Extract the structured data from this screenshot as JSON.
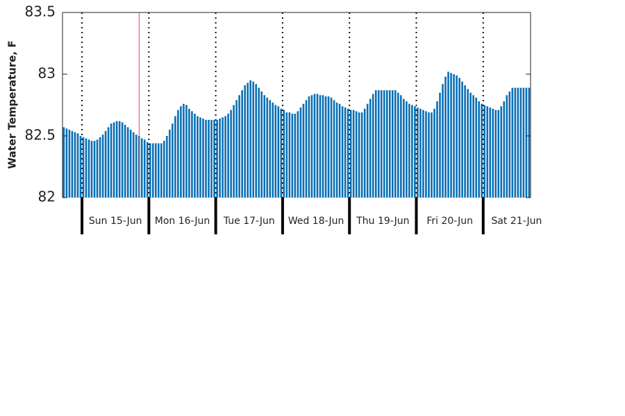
{
  "chart_data": {
    "type": "bar",
    "ylabel": "Water Temperature, F",
    "day_labels": [
      "Sun 15-Jun",
      "Mon 16-Jun",
      "Tue 17-Jun",
      "Wed 18-Jun",
      "Thu 19-Jun",
      "Fri 20-Jun",
      "Sat 21-Jun"
    ],
    "color": "#0a6fb5",
    "ylim": [
      82,
      83.5
    ],
    "yticks": [
      82,
      82.5,
      83,
      83.5
    ],
    "values": [
      82.57,
      82.56,
      82.55,
      82.54,
      82.53,
      82.52,
      82.5,
      82.49,
      82.48,
      82.47,
      82.46,
      82.46,
      82.47,
      82.49,
      82.51,
      82.54,
      82.57,
      82.6,
      82.61,
      82.62,
      82.62,
      82.61,
      82.59,
      82.57,
      82.55,
      82.53,
      82.51,
      82.5,
      82.48,
      82.47,
      82.45,
      82.44,
      82.44,
      82.44,
      82.44,
      82.44,
      82.46,
      82.5,
      82.55,
      82.6,
      82.66,
      82.71,
      82.74,
      82.76,
      82.75,
      82.72,
      82.7,
      82.68,
      82.66,
      82.65,
      82.64,
      82.63,
      82.63,
      82.63,
      82.63,
      82.63,
      82.64,
      82.65,
      82.66,
      82.68,
      82.71,
      82.75,
      82.79,
      82.83,
      82.87,
      82.91,
      82.93,
      82.95,
      82.94,
      82.92,
      82.89,
      82.86,
      82.83,
      82.81,
      82.79,
      82.77,
      82.75,
      82.74,
      82.72,
      82.71,
      82.69,
      82.69,
      82.68,
      82.68,
      82.7,
      82.73,
      82.76,
      82.79,
      82.82,
      82.83,
      82.84,
      82.84,
      82.83,
      82.83,
      82.82,
      82.82,
      82.81,
      82.79,
      82.77,
      82.76,
      82.74,
      82.73,
      82.72,
      82.71,
      82.71,
      82.7,
      82.69,
      82.69,
      82.72,
      82.76,
      82.8,
      82.84,
      82.87,
      82.87,
      82.87,
      82.87,
      82.87,
      82.87,
      82.87,
      82.87,
      82.85,
      82.83,
      82.8,
      82.78,
      82.76,
      82.75,
      82.74,
      82.73,
      82.72,
      82.71,
      82.7,
      82.69,
      82.69,
      82.72,
      82.78,
      82.85,
      82.92,
      82.98,
      83.02,
      83.01,
      83.0,
      82.99,
      82.97,
      82.94,
      82.91,
      82.88,
      82.85,
      82.83,
      82.81,
      82.78,
      82.76,
      82.75,
      82.74,
      82.73,
      82.72,
      82.71,
      82.71,
      82.74,
      82.78,
      82.83,
      82.86,
      82.89,
      82.89,
      82.89,
      82.89,
      82.89,
      82.89,
      82.89
    ]
  }
}
